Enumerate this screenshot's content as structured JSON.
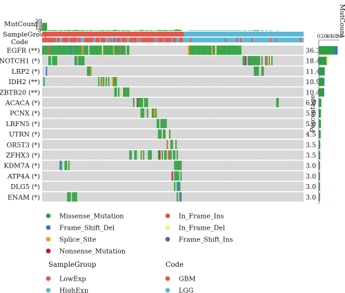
{
  "chart_data": {
    "type": "heatmap",
    "title": "",
    "tracks": {
      "mutcount": "MutCount",
      "group": "SampleGroup",
      "code": "Code"
    },
    "mutcount_ticks": [
      "30",
      "20",
      "10",
      "0"
    ],
    "side_axis_title": "MutCount",
    "side_ticks": [
      "0",
      "20",
      "40",
      "60",
      "80"
    ],
    "percentage_label": "Percentage",
    "genes": [
      "EGFR (**)",
      "NOTCH1 (*)",
      "LRP2 (*)",
      "IDH2 (**)",
      "ZBTB20 (**)",
      "ACACA (*)",
      "PCNX (*)",
      "LRFN5 (*)",
      "UTRN (*)",
      "OR5T3 (*)",
      "ZFHX3 (*)",
      "KDM7A (*)",
      "ATP4A (*)",
      "DLG5 (*)",
      "ENAM (*)"
    ],
    "percentages": [
      "36.3",
      "18.4",
      "11.4",
      "10.9",
      "10.4",
      "6.0",
      "5.0",
      "5.0",
      "4.5",
      "3.5",
      "3.5",
      "3.0",
      "3.0",
      "3.0",
      "3.0"
    ],
    "pct_values": [
      36.3,
      18.4,
      11.4,
      10.9,
      10.4,
      6.0,
      5.0,
      5.0,
      4.5,
      3.5,
      3.5,
      3.0,
      3.0,
      3.0,
      3.0
    ],
    "side_bar_values": [
      73,
      37,
      23,
      22,
      21,
      12,
      10,
      10,
      9,
      7,
      7,
      6,
      6,
      6,
      6
    ],
    "legend": {
      "mutations": [
        {
          "name": "Missense_Mutation",
          "color": "#2e9e3e"
        },
        {
          "name": "In_Frame_Ins",
          "color": "#d9534f"
        },
        {
          "name": "Frame_Shift_Del",
          "color": "#2c7bb6"
        },
        {
          "name": "In_Frame_Del",
          "color": "#f2ee8a"
        },
        {
          "name": "Splice_Site",
          "color": "#f39c2a"
        },
        {
          "name": "Frame_Shift_Ins",
          "color": "#7a4fa0"
        },
        {
          "name": "Nonsense_Mutation",
          "color": "#c8102e"
        }
      ],
      "sample_group_title": "SampleGroup",
      "sample_group": [
        {
          "name": "LowExp",
          "color": "#e2574c"
        },
        {
          "name": "HighExp",
          "color": "#5bb8d4"
        }
      ],
      "code_title": "Code",
      "code": [
        {
          "name": "GBM",
          "color": "#e2574c"
        },
        {
          "name": "LGG",
          "color": "#5bb8d4"
        }
      ]
    },
    "colors": {
      "background": "#d4d4d4",
      "missense": "#2e9e3e",
      "frameshift_del": "#2c7bb6",
      "splice": "#f39c2a",
      "nonsense": "#c8102e",
      "inframe_ins": "#d9534f",
      "inframe_del": "#f2ee8a",
      "frameshift_ins": "#7a4fa0",
      "low": "#e2574c",
      "high": "#5bb8d4"
    }
  }
}
